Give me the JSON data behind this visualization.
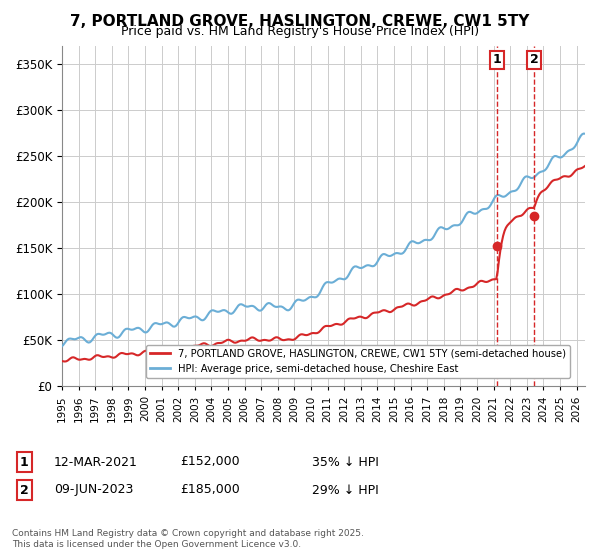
{
  "title": "7, PORTLAND GROVE, HASLINGTON, CREWE, CW1 5TY",
  "subtitle": "Price paid vs. HM Land Registry's House Price Index (HPI)",
  "ylim": [
    0,
    370000
  ],
  "yticks": [
    0,
    50000,
    100000,
    150000,
    200000,
    250000,
    300000,
    350000
  ],
  "xlim_start": 1995.0,
  "xlim_end": 2026.5,
  "sale1_date": 2021.19,
  "sale1_price": 152000,
  "sale1_label": "1",
  "sale2_date": 2023.44,
  "sale2_price": 185000,
  "sale2_label": "2",
  "hpi_color": "#6baed6",
  "property_color": "#d62728",
  "vline_color": "#d62728",
  "background_color": "#ffffff",
  "grid_color": "#cccccc",
  "legend_property": "7, PORTLAND GROVE, HASLINGTON, CREWE, CW1 5TY (semi-detached house)",
  "legend_hpi": "HPI: Average price, semi-detached house, Cheshire East",
  "annotation1_date": "12-MAR-2021",
  "annotation1_price": "£152,000",
  "annotation1_pct": "35% ↓ HPI",
  "annotation2_date": "09-JUN-2023",
  "annotation2_price": "£185,000",
  "annotation2_pct": "29% ↓ HPI",
  "footer": "Contains HM Land Registry data © Crown copyright and database right 2025.\nThis data is licensed under the Open Government Licence v3.0."
}
